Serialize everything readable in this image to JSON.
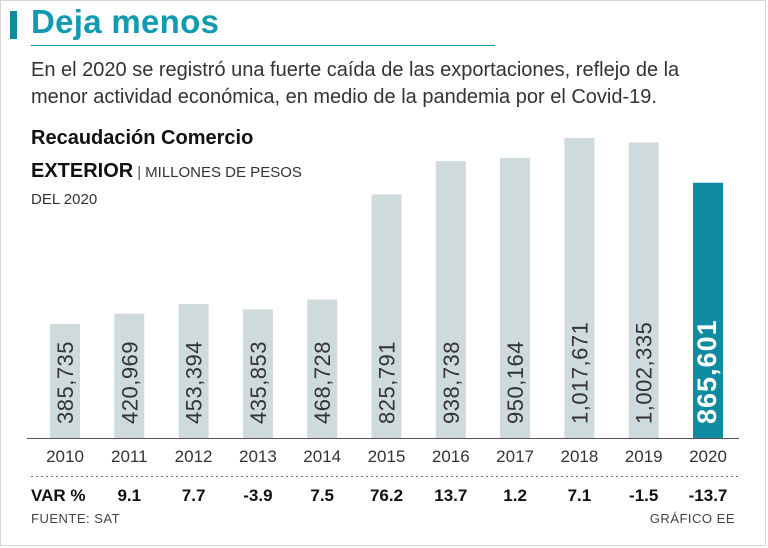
{
  "header": {
    "title": "Deja menos",
    "subtitle": "En el 2020 se registró una fuerte caída de las exportaciones, reflejo de la menor actividad económica, en medio de la pandemia por el Covid-19."
  },
  "chart_meta": {
    "title_line1": "Recaudación Comercio",
    "title_line2": "Exterior",
    "unit": "MILLONES DE PESOS",
    "unit_line2": "DEL 2020",
    "var_label": "VAR %"
  },
  "chart_data": {
    "type": "bar",
    "title": "Recaudación Comercio Exterior",
    "ylabel": "Millones de pesos del 2020",
    "categories": [
      "2010",
      "2011",
      "2012",
      "2013",
      "2014",
      "2015",
      "2016",
      "2017",
      "2018",
      "2019",
      "2020"
    ],
    "values": [
      385735,
      420969,
      453394,
      435853,
      468728,
      825791,
      938738,
      950164,
      1017671,
      1002335,
      865601
    ],
    "value_labels": [
      "385,735",
      "420,969",
      "453,394",
      "435,853",
      "468,728",
      "825,791",
      "938,738",
      "950,164",
      "1,017,671",
      "1,002,335",
      "865,601"
    ],
    "var_pct": [
      "9.1",
      "7.7",
      "-3.9",
      "7.5",
      "76.2",
      "13.7",
      "1.2",
      "7.1",
      "-1.5",
      "-13.7"
    ],
    "highlight_index": 10,
    "ylim": [
      0,
      1017671
    ]
  },
  "colors": {
    "bar": "#cfdadd",
    "highlight": "#0e8ba0",
    "accent": "#119bb3"
  },
  "footer": {
    "source": "FUENTE: SAT",
    "credit": "GRÁFICO EE"
  }
}
